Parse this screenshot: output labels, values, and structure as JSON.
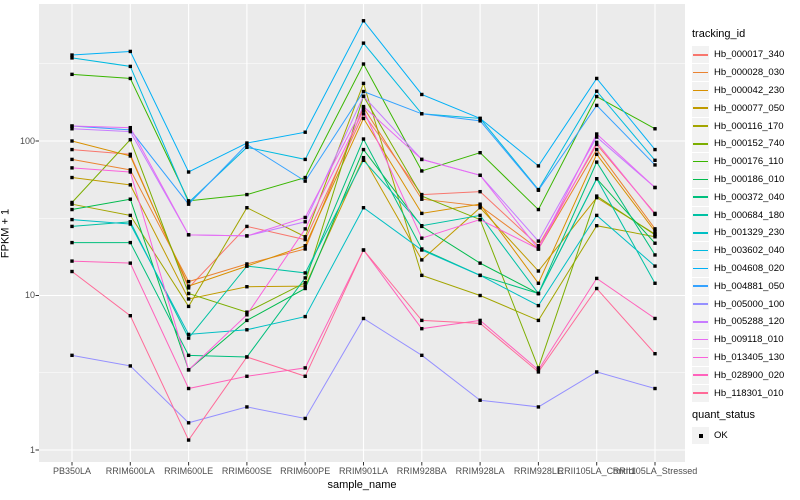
{
  "figure": {
    "background": "#FFFFFF",
    "panel_background": "#EBEBEB",
    "grid_color": "#FFFFFF",
    "tick_color": "#333333",
    "tick_label_color": "#4D4D4D",
    "point_color": "#000000"
  },
  "axes": {
    "y": {
      "title": "FPKM + 1",
      "scale": "log10",
      "major_ticks": [
        {
          "label": "100",
          "value": 100
        },
        {
          "label": "10",
          "value": 10
        },
        {
          "label": "1",
          "value": 1
        }
      ],
      "minor_values": [
        316.23,
        31.62,
        3.162
      ]
    },
    "x": {
      "title": "sample_name"
    }
  },
  "legend": {
    "tracking_title": "tracking_id",
    "quant_title": "quant_status",
    "quant_items": [
      {
        "label": "OK",
        "marker": "black-square"
      }
    ]
  },
  "chart_data": {
    "type": "line",
    "title": "",
    "xlabel": "sample_name",
    "ylabel": "FPKM + 1",
    "yscale": "log10",
    "ylim": [
      0.84,
      780
    ],
    "grid": true,
    "legend_position": "right",
    "point_marker": {
      "shape": "square",
      "color": "#000000",
      "legend_title": "quant_status",
      "legend_label": "OK"
    },
    "categories": [
      "PB350LA",
      "RRIM600LA",
      "RRIM600LE",
      "RRIM600SE",
      "RRIM600PE",
      "RRIM901LA",
      "RRIM928BA",
      "RRIM928LA",
      "RRIM928LE",
      "RRII105LA_Control",
      "RRII105LA_Stressed"
    ],
    "series": [
      {
        "name": "Hb_000017_340",
        "color": "#F8766D",
        "values": [
          88,
          82,
          11.2,
          28,
          23,
          150,
          45,
          47,
          21,
          95,
          34
        ]
      },
      {
        "name": "Hb_000028_030",
        "color": "#EA8331",
        "values": [
          76,
          65,
          12.3,
          16,
          20,
          165,
          42,
          38,
          20,
          88,
          27
        ]
      },
      {
        "name": "Hb_000042_230",
        "color": "#D89000",
        "values": [
          100,
          80,
          11.5,
          15.5,
          21,
          140,
          34,
          39,
          12,
          82,
          26
        ]
      },
      {
        "name": "Hb_000077_050",
        "color": "#C09B00",
        "values": [
          58,
          52,
          9.5,
          11.4,
          11.5,
          78,
          17,
          37,
          14.4,
          43,
          25
        ]
      },
      {
        "name": "Hb_000116_170",
        "color": "#A3A500",
        "values": [
          39,
          33,
          8.5,
          37,
          24,
          236,
          13.5,
          10,
          6.9,
          28.3,
          24
        ]
      },
      {
        "name": "Hb_000152_740",
        "color": "#7CAE00",
        "values": [
          40,
          102,
          10.3,
          7.8,
          12.1,
          195,
          44,
          31,
          3.4,
          44,
          24.7
        ]
      },
      {
        "name": "Hb_000176_110",
        "color": "#39B600",
        "values": [
          270,
          254,
          41,
          45,
          58,
          315,
          64,
          84,
          36,
          194,
          120
        ]
      },
      {
        "name": "Hb_000186_010",
        "color": "#00BB4E",
        "values": [
          36,
          42,
          3.3,
          6.9,
          11.1,
          88,
          28,
          16.2,
          10.3,
          57,
          21.8
        ]
      },
      {
        "name": "Hb_000372_040",
        "color": "#00BF7D",
        "values": [
          22,
          22,
          4.1,
          4.0,
          13,
          103,
          20,
          13.5,
          10.3,
          73,
          18.3
        ]
      },
      {
        "name": "Hb_000684_180",
        "color": "#00C1A3",
        "values": [
          28,
          30,
          5.3,
          15.5,
          14,
          75,
          28.3,
          33,
          10.3,
          57,
          12
        ]
      },
      {
        "name": "Hb_001329_230",
        "color": "#00BFC4",
        "values": [
          31,
          29,
          5.6,
          6.0,
          7.3,
          37,
          19.7,
          13.5,
          8.6,
          33,
          15.5
        ]
      },
      {
        "name": "Hb_003602_040",
        "color": "#00BAE0",
        "values": [
          345,
          304,
          40,
          91,
          76,
          430,
          150,
          140,
          48.5,
          210,
          75
        ]
      },
      {
        "name": "Hb_004608_020",
        "color": "#00B0F6",
        "values": [
          360,
          380,
          63,
          97,
          114,
          600,
          200,
          140,
          69,
          254,
          88
        ]
      },
      {
        "name": "Hb_004881_050",
        "color": "#35A2FF",
        "values": [
          125,
          118,
          39,
          95,
          55,
          209,
          150,
          135,
          48,
          170,
          70
        ]
      },
      {
        "name": "Hb_005000_100",
        "color": "#9590FF",
        "values": [
          4.1,
          3.5,
          1.5,
          1.9,
          1.6,
          7.1,
          4.1,
          2.1,
          1.9,
          3.2,
          2.5
        ]
      },
      {
        "name": "Hb_005288_120",
        "color": "#C77CFF",
        "values": [
          120,
          115,
          24.7,
          24.3,
          30,
          195,
          76,
          60,
          22.5,
          106,
          50
        ]
      },
      {
        "name": "Hb_009118_010",
        "color": "#E76BF3",
        "values": [
          125,
          122,
          24.7,
          24.3,
          32,
          167,
          76,
          60,
          20,
          111,
          50
        ]
      },
      {
        "name": "Hb_013405_130",
        "color": "#FA62DB",
        "values": [
          67,
          63,
          3.3,
          7.5,
          27,
          158,
          23.5,
          31,
          20,
          98,
          33.5
        ]
      },
      {
        "name": "Hb_028900_020",
        "color": "#FF62BC",
        "values": [
          16.7,
          16.2,
          2.5,
          3.0,
          3.4,
          19.7,
          6.1,
          6.9,
          3.3,
          12.9,
          7.1
        ]
      },
      {
        "name": "Hb_118301_010",
        "color": "#FF6A98",
        "values": [
          14.3,
          7.4,
          1.16,
          4.0,
          3.0,
          19.7,
          6.9,
          6.6,
          3.2,
          11.1,
          4.2
        ]
      }
    ]
  }
}
